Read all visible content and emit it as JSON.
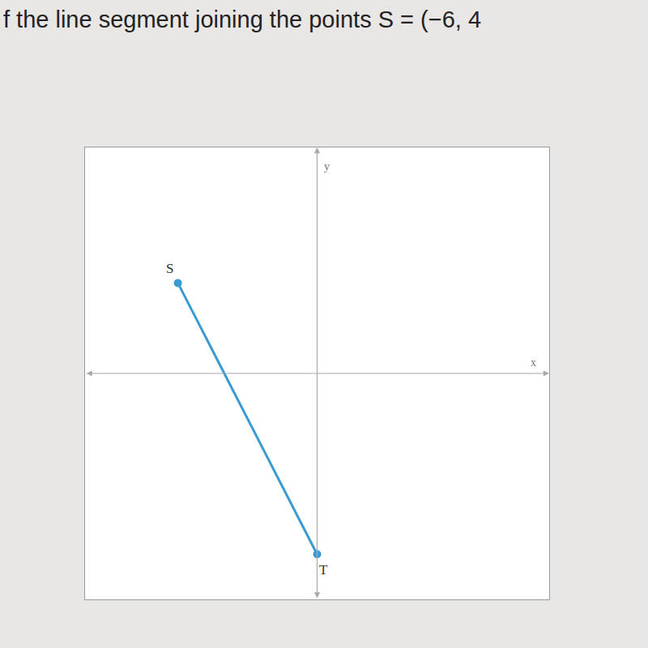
{
  "chart_data": {
    "type": "line",
    "title": "f the line segment joining the points S = (−6, 4",
    "x": [
      -6,
      0
    ],
    "values": [
      4,
      -8
    ],
    "color": "#3a9ad4",
    "marker": "circle",
    "xlim": [
      -10,
      10
    ],
    "ylim": [
      -10,
      10
    ],
    "tick_labels": false,
    "grid": false,
    "xlabel": "x",
    "ylabel": "y",
    "annotations": [
      {
        "text": "S",
        "x": -6,
        "y": 4
      },
      {
        "text": "T",
        "x": 0,
        "y": -8
      }
    ]
  }
}
